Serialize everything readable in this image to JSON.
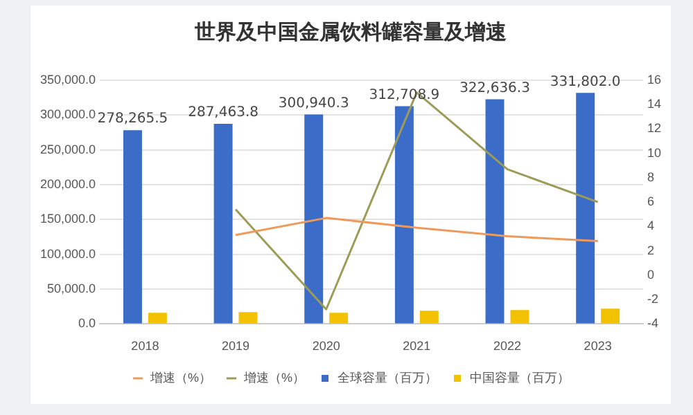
{
  "chart_data": {
    "type": "bar",
    "title": "世界及中国金属饮料罐容量及增速",
    "categories": [
      "2018",
      "2019",
      "2020",
      "2021",
      "2022",
      "2023"
    ],
    "series": [
      {
        "name": "全球容量（百万）",
        "color": "#3b6cc8",
        "values": [
          278265.5,
          287463.8,
          300940.3,
          312708.9,
          322636.3,
          331802.0
        ],
        "value_labels": [
          "278,265.5",
          "287,463.8",
          "300,940.3",
          "312,708.9",
          "322,636.3",
          "331,802.0"
        ]
      },
      {
        "name": "中国容量（百万）",
        "color": "#f2c200",
        "values": [
          16000,
          17000,
          16000,
          19000,
          20000,
          22000
        ]
      },
      {
        "name": "增速（%）",
        "type": "line",
        "axis": "y2",
        "color": "#ee9a5a",
        "values": [
          null,
          3.3,
          4.7,
          3.9,
          3.2,
          2.8
        ]
      },
      {
        "name": "增速（%）",
        "type": "line",
        "axis": "y2",
        "color": "#9c9c58",
        "values": [
          null,
          5.4,
          -2.8,
          15.0,
          8.7,
          6.0
        ]
      }
    ],
    "ylim": [
      0,
      350000
    ],
    "yticks": [
      {
        "value": 0,
        "label": "0.0"
      },
      {
        "value": 50000,
        "label": "50,000.0"
      },
      {
        "value": 100000,
        "label": "100,000.0"
      },
      {
        "value": 150000,
        "label": "150,000.0"
      },
      {
        "value": 200000,
        "label": "200,000.0"
      },
      {
        "value": 250000,
        "label": "250,000.0"
      },
      {
        "value": 300000,
        "label": "300,000.0"
      },
      {
        "value": 350000,
        "label": "350,000.0"
      }
    ],
    "y2lim": [
      -4,
      16
    ],
    "y2ticks": [
      -4,
      -2,
      0,
      2,
      4,
      6,
      8,
      10,
      12,
      14,
      16
    ],
    "grid": "y",
    "legend": "bottom",
    "marker": "none"
  }
}
